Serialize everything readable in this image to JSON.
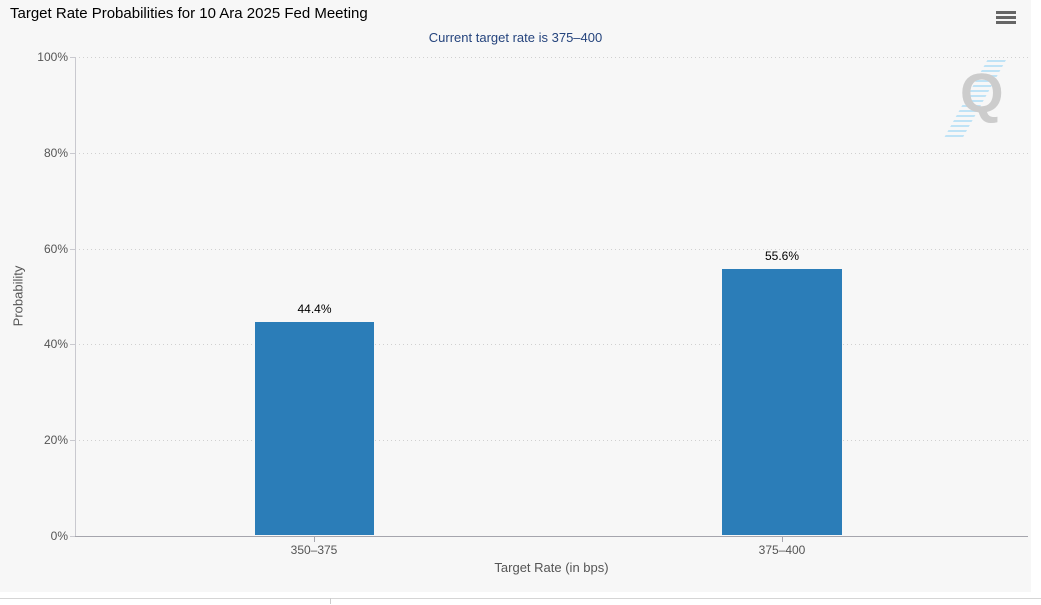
{
  "header": {
    "title": "Target Rate Probabilities for 10 Ara 2025 Fed Meeting",
    "subtitle": "Current target rate is 375–400"
  },
  "toolbar": {
    "export_menu_icon": "hamburger-menu-icon"
  },
  "watermark": {
    "letter": "Q"
  },
  "chart_data": {
    "type": "bar",
    "title": "Target Rate Probabilities for 10 Ara 2025 Fed Meeting",
    "subtitle": "Current target rate is 375–400",
    "categories": [
      "350–375",
      "375–400"
    ],
    "values": [
      44.4,
      55.6
    ],
    "value_labels": [
      "44.4%",
      "55.6%"
    ],
    "xlabel": "Target Rate (in bps)",
    "ylabel": "Probability",
    "ylim": [
      0,
      100
    ],
    "yticks": [
      "0%",
      "20%",
      "40%",
      "60%",
      "80%",
      "100%"
    ],
    "grid": "horizontal dotted",
    "legend_position": "none",
    "colors": {
      "bar": "#2b7db8",
      "subtitle_text": "#25447d",
      "panel_background": "#f7f7f7",
      "axis_text": "#555555"
    }
  }
}
